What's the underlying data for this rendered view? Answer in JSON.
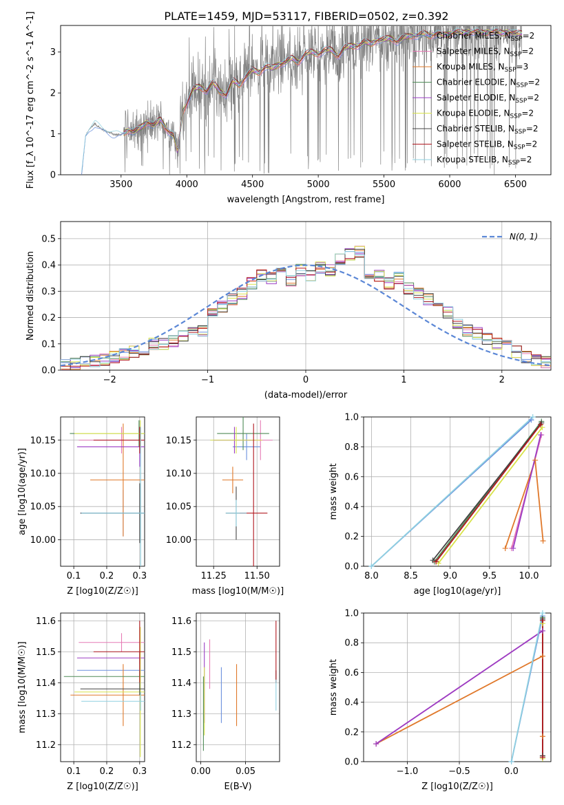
{
  "figure": {
    "title": "PLATE=1459, MJD=53117, FIBERID=0502, z=0.392"
  },
  "legend_models": [
    {
      "label": "Chabrier MILES, N_SSP=2",
      "prefix": "Chabrier MILES, N",
      "sub": "SSP",
      "suffix": "=2",
      "color": "#6a8fdd"
    },
    {
      "label": "Salpeter MILES, N_SSP=2",
      "prefix": "Salpeter MILES, N",
      "sub": "SSP",
      "suffix": "=2",
      "color": "#e67ab5"
    },
    {
      "label": "Kroupa MILES, N_SSP=3",
      "prefix": "Kroupa MILES, N",
      "sub": "SSP",
      "suffix": "=3",
      "color": "#e0782a"
    },
    {
      "label": "Chabrier ELODIE, N_SSP=2",
      "prefix": "Chabrier ELODIE, N",
      "sub": "SSP",
      "suffix": "=2",
      "color": "#4f8b57"
    },
    {
      "label": "Salpeter ELODIE, N_SSP=2",
      "prefix": "Salpeter ELODIE, N",
      "sub": "SSP",
      "suffix": "=2",
      "color": "#9b3cc4"
    },
    {
      "label": "Kroupa ELODIE, N_SSP=2",
      "prefix": "Kroupa ELODIE, N",
      "sub": "SSP",
      "suffix": "=2",
      "color": "#d8e34a"
    },
    {
      "label": "Chabrier STELIB, N_SSP=2",
      "prefix": "Chabrier STELIB, N",
      "sub": "SSP",
      "suffix": "=2",
      "color": "#444444"
    },
    {
      "label": "Salpeter STELIB, N_SSP=2",
      "prefix": "Salpeter STELIB, N",
      "sub": "SSP",
      "suffix": "=2",
      "color": "#b0161e"
    },
    {
      "label": "Kroupa STELIB, N_SSP=2",
      "prefix": "Kroupa STELIB, N",
      "sub": "SSP",
      "suffix": "=2",
      "color": "#8fd0e0"
    }
  ],
  "chart_data": [
    {
      "id": "spectrum",
      "type": "line",
      "xlabel": "wavelength [Angstrom, rest frame]",
      "ylabel": "Flux [f_λ 10^-17 erg cm^-2 s^-1 A^-1]",
      "xlim": [
        3040,
        6770
      ],
      "ylim": [
        0,
        3.65
      ],
      "xticks": [
        "3500",
        "4000",
        "4500",
        "5000",
        "5500",
        "6000",
        "6500"
      ],
      "yticks": [
        "0",
        "1",
        "2",
        "3"
      ],
      "data_color": "#808080",
      "continuum": [
        [
          3200,
          0
        ],
        [
          3230,
          0.95
        ],
        [
          3260,
          1.12
        ],
        [
          3300,
          1.25
        ],
        [
          3350,
          1.12
        ],
        [
          3400,
          1.05
        ],
        [
          3450,
          0.98
        ],
        [
          3500,
          0.98
        ],
        [
          3560,
          1.1
        ],
        [
          3600,
          1.05
        ],
        [
          3650,
          1.15
        ],
        [
          3700,
          1.3
        ],
        [
          3750,
          1.2
        ],
        [
          3800,
          1.35
        ],
        [
          3850,
          1.1
        ],
        [
          3900,
          0.95
        ],
        [
          3930,
          0.55
        ],
        [
          3970,
          1.55
        ],
        [
          4000,
          1.75
        ],
        [
          4050,
          2.1
        ],
        [
          4100,
          2.15
        ],
        [
          4150,
          2.05
        ],
        [
          4200,
          2.25
        ],
        [
          4250,
          2.05
        ],
        [
          4300,
          1.95
        ],
        [
          4350,
          2.3
        ],
        [
          4400,
          2.2
        ],
        [
          4450,
          2.4
        ],
        [
          4500,
          2.55
        ],
        [
          4550,
          2.5
        ],
        [
          4600,
          2.65
        ],
        [
          4650,
          2.6
        ],
        [
          4700,
          2.7
        ],
        [
          4750,
          2.75
        ],
        [
          4800,
          2.85
        ],
        [
          4850,
          2.75
        ],
        [
          4900,
          2.95
        ],
        [
          4950,
          3.0
        ],
        [
          5000,
          2.95
        ],
        [
          5050,
          3.05
        ],
        [
          5100,
          3.05
        ],
        [
          5150,
          2.9
        ],
        [
          5200,
          3.1
        ],
        [
          5250,
          3.15
        ],
        [
          5300,
          3.15
        ],
        [
          5350,
          3.25
        ],
        [
          5400,
          3.2
        ],
        [
          5450,
          3.3
        ],
        [
          5500,
          3.3
        ],
        [
          5550,
          3.35
        ],
        [
          5600,
          3.25
        ],
        [
          5650,
          3.35
        ],
        [
          5700,
          3.4
        ],
        [
          5750,
          3.4
        ],
        [
          5800,
          3.45
        ],
        [
          5850,
          3.4
        ],
        [
          5900,
          3.45
        ],
        [
          5950,
          3.4
        ],
        [
          6000,
          3.45
        ],
        [
          6050,
          3.5
        ],
        [
          6100,
          3.45
        ],
        [
          6150,
          3.5
        ],
        [
          6200,
          3.5
        ],
        [
          6250,
          3.45
        ],
        [
          6300,
          3.5
        ],
        [
          6350,
          3.5
        ],
        [
          6400,
          3.45
        ],
        [
          6450,
          3.5
        ],
        [
          6500,
          3.45
        ],
        [
          6550,
          3.45
        ]
      ]
    },
    {
      "id": "residual-histogram",
      "type": "histogram",
      "xlabel": "(data-model)/error",
      "ylabel": "Normed distribution",
      "xlim": [
        -2.5,
        2.5
      ],
      "ylim": [
        0,
        0.565
      ],
      "xticks": [
        "-2",
        "-1",
        "0",
        "1",
        "2"
      ],
      "yticks": [
        "0.0",
        "0.1",
        "0.2",
        "0.3",
        "0.4",
        "0.5"
      ],
      "bins": {
        "start": -2.5,
        "width": 0.1,
        "count": 50
      },
      "base_density": [
        0.02,
        0.025,
        0.03,
        0.035,
        0.04,
        0.05,
        0.06,
        0.07,
        0.08,
        0.1,
        0.1,
        0.11,
        0.13,
        0.14,
        0.15,
        0.22,
        0.24,
        0.27,
        0.29,
        0.33,
        0.36,
        0.35,
        0.37,
        0.34,
        0.38,
        0.36,
        0.39,
        0.38,
        0.42,
        0.44,
        0.45,
        0.37,
        0.36,
        0.33,
        0.35,
        0.31,
        0.29,
        0.27,
        0.25,
        0.22,
        0.18,
        0.15,
        0.14,
        0.12,
        0.1,
        0.09,
        0.07,
        0.05,
        0.04,
        0.03
      ],
      "reference_curve": {
        "label": "N(0, 1)",
        "mean": 0,
        "sigma": 1,
        "color": "#5b87d6"
      }
    },
    {
      "id": "age-vs-metallicity",
      "type": "errorbar",
      "xlabel": "Z [log10(Z/Z☉)]",
      "ylabel": "age [log10(age/yr)]",
      "xlim": [
        0.06,
        0.315
      ],
      "ylim": [
        9.96,
        10.185
      ],
      "xticks": [
        "0.1",
        "0.2",
        "0.3"
      ],
      "yticks": [
        "10.00",
        "10.05",
        "10.10",
        "10.15"
      ],
      "points": [
        {
          "model": 0,
          "x": 0.25,
          "y": 10.04,
          "xerr": 0.13,
          "yerr": 0.035
        },
        {
          "model": 1,
          "x": 0.245,
          "y": 10.15,
          "xerr": 0.13,
          "yerr": 0.02
        },
        {
          "model": 2,
          "x": 0.25,
          "y": 10.09,
          "xerr": 0.1,
          "yerr": 0.085
        },
        {
          "model": 3,
          "x": 0.298,
          "y": 10.16,
          "xerr": 0.21,
          "yerr": 0.02
        },
        {
          "model": 4,
          "x": 0.3,
          "y": 10.14,
          "xerr": 0.19,
          "yerr": 0.03
        },
        {
          "model": 5,
          "x": 0.302,
          "y": 10.16,
          "xerr": 0.2,
          "yerr": 0.02
        },
        {
          "model": 6,
          "x": 0.3,
          "y": 10.04,
          "xerr": 0.18,
          "yerr": 0.045
        },
        {
          "model": 7,
          "x": 0.3,
          "y": 10.15,
          "xerr": 0.14,
          "yerr": 0.02
        },
        {
          "model": 8,
          "x": 0.303,
          "y": 10.04,
          "xerr": 0.18,
          "yerr": 0.13
        }
      ]
    },
    {
      "id": "age-vs-mass",
      "type": "errorbar",
      "xlabel": "mass [log10(M/M☉)]",
      "ylabel": "",
      "xlim": [
        11.15,
        11.63
      ],
      "ylim": [
        9.96,
        10.185
      ],
      "xticks": [
        "11.25",
        "11.50"
      ],
      "yticks": [
        "10.00",
        "10.05",
        "10.10",
        "10.15"
      ],
      "points": [
        {
          "model": 0,
          "x": 11.44,
          "y": 10.14,
          "xerr": 0.08,
          "yerr": 0.02
        },
        {
          "model": 1,
          "x": 11.52,
          "y": 10.15,
          "xerr": 0.07,
          "yerr": 0.03
        },
        {
          "model": 2,
          "x": 11.36,
          "y": 10.09,
          "xerr": 0.06,
          "yerr": 0.02
        },
        {
          "model": 3,
          "x": 11.42,
          "y": 10.16,
          "xerr": 0.15,
          "yerr": 0.025
        },
        {
          "model": 4,
          "x": 11.37,
          "y": 10.15,
          "xerr": 0.12,
          "yerr": 0.02
        },
        {
          "model": 5,
          "x": 11.38,
          "y": 10.15,
          "xerr": 0.15,
          "yerr": 0.02
        },
        {
          "model": 6,
          "x": 11.38,
          "y": 10.04,
          "xerr": 0.06,
          "yerr": 0.04
        },
        {
          "model": 7,
          "x": 11.48,
          "y": 10.04,
          "xerr": 0.08,
          "yerr": 0.135
        },
        {
          "model": 8,
          "x": 11.38,
          "y": 10.04,
          "xerr": 0.06,
          "yerr": 0.02
        }
      ]
    },
    {
      "id": "mass-weight-vs-age",
      "type": "line",
      "xlabel": "age [log10(age/yr)]",
      "ylabel": "mass weight",
      "xlim": [
        7.9,
        10.28
      ],
      "ylim": [
        0,
        1.0
      ],
      "xticks": [
        "8.0",
        "8.5",
        "9.0",
        "9.5",
        "10.0"
      ],
      "yticks": [
        "0.0",
        "0.2",
        "0.4",
        "0.6",
        "0.8",
        "1.0"
      ],
      "series": [
        {
          "model": 0,
          "x": [
            8.0,
            10.03
          ],
          "y": [
            0.0,
            0.98
          ]
        },
        {
          "model": 1,
          "x": [
            9.78,
            10.16
          ],
          "y": [
            0.12,
            0.88
          ]
        },
        {
          "model": 2,
          "x": [
            9.7,
            10.08,
            10.18
          ],
          "y": [
            0.12,
            0.71,
            0.17
          ]
        },
        {
          "model": 3,
          "x": [
            8.8,
            10.16
          ],
          "y": [
            0.03,
            0.97
          ]
        },
        {
          "model": 4,
          "x": [
            9.8,
            10.15
          ],
          "y": [
            0.12,
            0.88
          ]
        },
        {
          "model": 5,
          "x": [
            8.85,
            10.17
          ],
          "y": [
            0.02,
            0.93
          ]
        },
        {
          "model": 6,
          "x": [
            8.78,
            10.16
          ],
          "y": [
            0.04,
            0.96
          ]
        },
        {
          "model": 7,
          "x": [
            8.82,
            10.15
          ],
          "y": [
            0.03,
            0.95
          ]
        },
        {
          "model": 8,
          "x": [
            8.0,
            10.05
          ],
          "y": [
            0.0,
            1.0
          ]
        }
      ]
    },
    {
      "id": "mass-vs-metallicity",
      "type": "errorbar",
      "xlabel": "Z [log10(Z/Z☉)]",
      "ylabel": "mass [log10(M/M☉)]",
      "xlim": [
        0.06,
        0.315
      ],
      "ylim": [
        11.145,
        11.625
      ],
      "xticks": [
        "0.1",
        "0.2",
        "0.3"
      ],
      "yticks": [
        "11.2",
        "11.3",
        "11.4",
        "11.5",
        "11.6"
      ],
      "points": [
        {
          "model": 0,
          "x": 0.3,
          "y": 11.44,
          "xerr": 0.19,
          "yerr": 0.02
        },
        {
          "model": 1,
          "x": 0.245,
          "y": 11.53,
          "xerr": 0.13,
          "yerr": 0.03
        },
        {
          "model": 2,
          "x": 0.25,
          "y": 11.36,
          "xerr": 0.16,
          "yerr": 0.1
        },
        {
          "model": 3,
          "x": 0.3,
          "y": 11.42,
          "xerr": 0.23,
          "yerr": 0.02
        },
        {
          "model": 4,
          "x": 0.3,
          "y": 11.48,
          "xerr": 0.19,
          "yerr": 0.02
        },
        {
          "model": 5,
          "x": 0.302,
          "y": 11.37,
          "xerr": 0.2,
          "yerr": 0.21
        },
        {
          "model": 6,
          "x": 0.3,
          "y": 11.38,
          "xerr": 0.18,
          "yerr": 0.02
        },
        {
          "model": 7,
          "x": 0.3,
          "y": 11.5,
          "xerr": 0.14,
          "yerr": 0.1
        },
        {
          "model": 8,
          "x": 0.303,
          "y": 11.34,
          "xerr": 0.18,
          "yerr": 0.03
        }
      ]
    },
    {
      "id": "mass-vs-extinction",
      "type": "errorbar",
      "xlabel": "E(B-V)",
      "ylabel": "",
      "xlim": [
        -0.005,
        0.088
      ],
      "ylim": [
        11.145,
        11.625
      ],
      "xticks": [
        "0.00",
        "0.05"
      ],
      "yticks": [
        "11.2",
        "11.3",
        "11.4",
        "11.5",
        "11.6"
      ],
      "points": [
        {
          "model": 0,
          "x": 0.023,
          "y": 11.36,
          "xerr": 0,
          "yerr": 0.09
        },
        {
          "model": 1,
          "x": 0.01,
          "y": 11.46,
          "xerr": 0,
          "yerr": 0.08
        },
        {
          "model": 2,
          "x": 0.04,
          "y": 11.36,
          "xerr": 0,
          "yerr": 0.1
        },
        {
          "model": 3,
          "x": 0.003,
          "y": 11.3,
          "xerr": 0,
          "yerr": 0.12
        },
        {
          "model": 4,
          "x": 0.004,
          "y": 11.4,
          "xerr": 0,
          "yerr": 0.13
        },
        {
          "model": 5,
          "x": 0.004,
          "y": 11.34,
          "xerr": 0,
          "yerr": 0.11
        },
        {
          "model": 6,
          "x": 0.084,
          "y": 11.42,
          "xerr": 0,
          "yerr": 0.02
        },
        {
          "model": 7,
          "x": 0.084,
          "y": 11.5,
          "xerr": 0,
          "yerr": 0.1
        },
        {
          "model": 8,
          "x": 0.084,
          "y": 11.36,
          "xerr": 0,
          "yerr": 0.05
        }
      ]
    },
    {
      "id": "mass-weight-vs-metallicity",
      "type": "line",
      "xlabel": "Z [log10(Z/Z☉)]",
      "ylabel": "mass weight",
      "xlim": [
        -1.42,
        0.38
      ],
      "ylim": [
        0,
        1.0
      ],
      "xticks": [
        "-1.0",
        "-0.5",
        "0.0"
      ],
      "yticks": [
        "0.0",
        "0.2",
        "0.4",
        "0.6",
        "0.8",
        "1.0"
      ],
      "series": [
        {
          "model": 0,
          "x": [
            0.0,
            0.3
          ],
          "y": [
            0.0,
            0.98
          ]
        },
        {
          "model": 1,
          "x": [
            -1.3,
            0.3
          ],
          "y": [
            0.12,
            0.88
          ]
        },
        {
          "model": 2,
          "x": [
            -1.3,
            0.3,
            0.3
          ],
          "y": [
            0.12,
            0.71,
            0.17
          ]
        },
        {
          "model": 3,
          "x": [
            0.3,
            0.3
          ],
          "y": [
            0.03,
            0.97
          ]
        },
        {
          "model": 4,
          "x": [
            -1.3,
            0.3
          ],
          "y": [
            0.12,
            0.88
          ]
        },
        {
          "model": 5,
          "x": [
            0.3,
            0.3
          ],
          "y": [
            0.02,
            0.93
          ]
        },
        {
          "model": 6,
          "x": [
            0.3,
            0.3
          ],
          "y": [
            0.04,
            0.96
          ]
        },
        {
          "model": 7,
          "x": [
            0.3,
            0.3
          ],
          "y": [
            0.03,
            0.95
          ]
        },
        {
          "model": 8,
          "x": [
            0.0,
            0.3
          ],
          "y": [
            0.0,
            1.0
          ]
        }
      ]
    }
  ]
}
